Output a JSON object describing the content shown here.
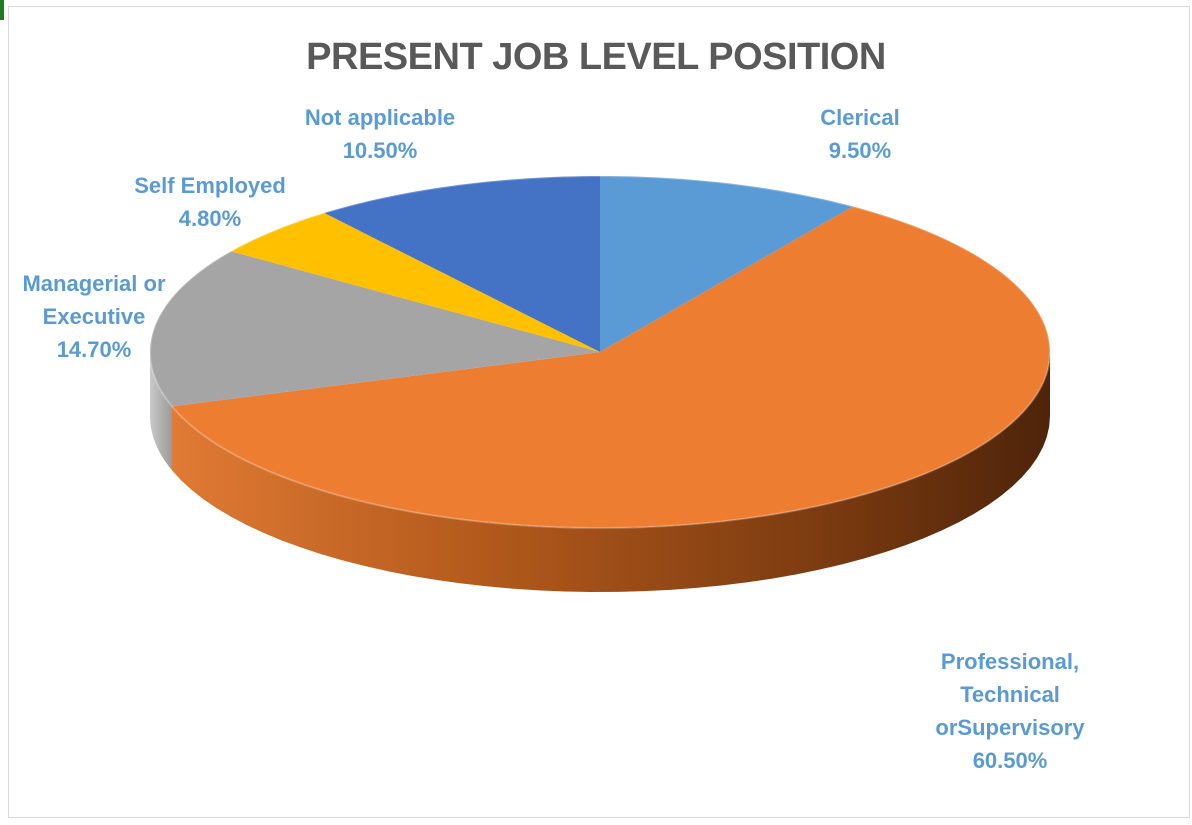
{
  "chart_data": {
    "type": "pie",
    "title": "PRESENT JOB LEVEL POSITION",
    "slices": [
      {
        "label": "Clerical",
        "value": 9.5,
        "value_label": "9.50%",
        "color": "#5b9bd5"
      },
      {
        "label": "Professional,\nTechnical\norSupervisory",
        "value": 60.5,
        "value_label": "60.50%",
        "color": "#ed7d31"
      },
      {
        "label": "Managerial or\nExecutive",
        "value": 14.7,
        "value_label": "14.70%",
        "color": "#a5a5a5"
      },
      {
        "label": "Self Employed",
        "value": 4.8,
        "value_label": "4.80%",
        "color": "#ffc000"
      },
      {
        "label": "Not applicable",
        "value": 10.5,
        "value_label": "10.50%",
        "color": "#4472c4"
      }
    ],
    "style": "3d",
    "legend": "none"
  }
}
